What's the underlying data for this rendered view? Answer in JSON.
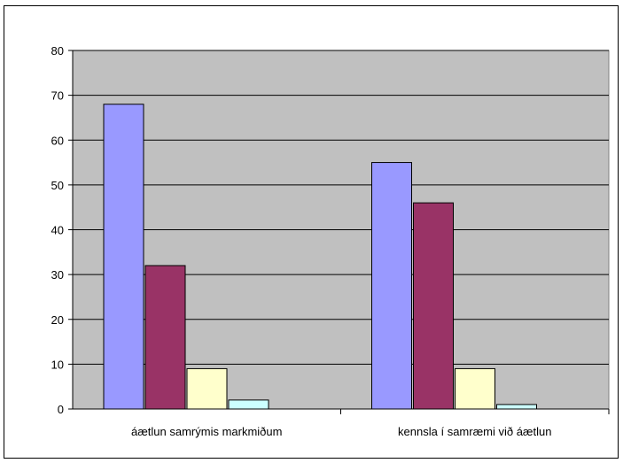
{
  "chart_data": {
    "type": "bar",
    "title": "",
    "xlabel": "",
    "ylabel": "",
    "categories": [
      "áætlun samrýmis markmiðum",
      "kennsla í samræmi við áætlun"
    ],
    "series": [
      {
        "values": [
          68,
          55
        ]
      },
      {
        "values": [
          32,
          46
        ]
      },
      {
        "values": [
          9,
          9
        ]
      },
      {
        "values": [
          2,
          1
        ]
      }
    ],
    "series_colors": [
      "#9999ff",
      "#993366",
      "#ffffcc",
      "#ccffff"
    ],
    "plot_background": "#c0c0c0",
    "ylim": [
      0,
      80
    ],
    "yticks": [
      "0",
      "10",
      "20",
      "30",
      "40",
      "50",
      "60",
      "70",
      "80"
    ],
    "grid": true,
    "legend": "none"
  }
}
